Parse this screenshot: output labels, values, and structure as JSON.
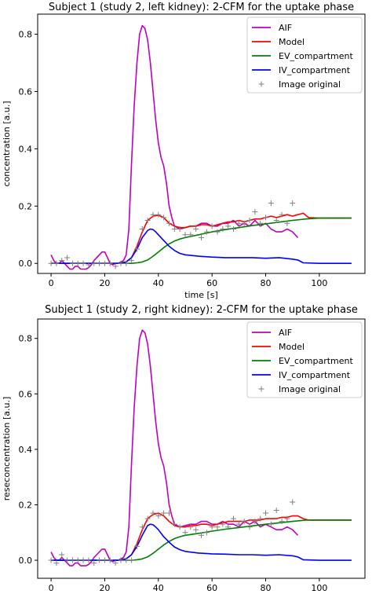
{
  "chart_data": [
    {
      "type": "line",
      "title": "Subject 1 (study 2, left kidney): 2-CFM for the uptake phase",
      "xlabel": "time [s]",
      "ylabel": "concentration [a.u.]",
      "xlim": [
        -5,
        117
      ],
      "ylim": [
        -0.035,
        0.87
      ],
      "xticks": [
        0,
        20,
        40,
        60,
        80,
        100
      ],
      "yticks": [
        0.0,
        0.2,
        0.4,
        0.6,
        0.8
      ],
      "xtick_labels": [
        "0",
        "20",
        "40",
        "60",
        "80",
        "100"
      ],
      "ytick_labels": [
        "0.0",
        "0.2",
        "0.4",
        "0.6",
        "0.8"
      ],
      "grid": false,
      "legend_position": "top-right",
      "series": [
        {
          "name": "AIF",
          "kind": "line",
          "color": "#bf00bf",
          "x": [
            0,
            1,
            2,
            3,
            4,
            5,
            6,
            7,
            8,
            9,
            10,
            11,
            12,
            13,
            14,
            15,
            16,
            17,
            18,
            19,
            20,
            21,
            22,
            23,
            24,
            25,
            26,
            27,
            28,
            29,
            30,
            31,
            32,
            33,
            34,
            35,
            36,
            37,
            38,
            39,
            40,
            41,
            42,
            43,
            44,
            45,
            46,
            47,
            48,
            50,
            52,
            54,
            56,
            58,
            60,
            62,
            64,
            66,
            68,
            70,
            72,
            74,
            76,
            78,
            80,
            82,
            84,
            86,
            88,
            90,
            92
          ],
          "y": [
            0.03,
            0.01,
            0.0,
            0.0,
            0.01,
            0.0,
            -0.01,
            -0.02,
            -0.02,
            -0.01,
            -0.01,
            -0.02,
            -0.02,
            -0.02,
            -0.015,
            -0.005,
            0.01,
            0.02,
            0.03,
            0.04,
            0.04,
            0.02,
            0.0,
            -0.005,
            0.0,
            0.0,
            0.005,
            0.01,
            0.03,
            0.12,
            0.35,
            0.55,
            0.7,
            0.8,
            0.83,
            0.82,
            0.78,
            0.7,
            0.6,
            0.5,
            0.42,
            0.37,
            0.34,
            0.28,
            0.2,
            0.16,
            0.13,
            0.125,
            0.12,
            0.125,
            0.13,
            0.13,
            0.14,
            0.14,
            0.13,
            0.13,
            0.14,
            0.14,
            0.15,
            0.13,
            0.14,
            0.13,
            0.15,
            0.13,
            0.14,
            0.12,
            0.11,
            0.11,
            0.12,
            0.11,
            0.09
          ]
        },
        {
          "name": "Model",
          "kind": "line",
          "color": "#ff0000",
          "x": [
            0,
            5,
            10,
            15,
            20,
            25,
            28,
            30,
            32,
            34,
            36,
            38,
            40,
            42,
            44,
            46,
            48,
            50,
            52,
            54,
            56,
            58,
            60,
            62,
            64,
            66,
            68,
            70,
            72,
            74,
            76,
            78,
            80,
            82,
            84,
            86,
            88,
            90,
            92,
            94,
            96,
            100,
            105,
            112
          ],
          "y": [
            0.0,
            0.0,
            0.0,
            0.0,
            0.0,
            0.0,
            0.005,
            0.02,
            0.06,
            0.11,
            0.15,
            0.165,
            0.168,
            0.16,
            0.14,
            0.13,
            0.125,
            0.125,
            0.13,
            0.13,
            0.135,
            0.135,
            0.13,
            0.135,
            0.14,
            0.145,
            0.145,
            0.15,
            0.145,
            0.15,
            0.155,
            0.155,
            0.16,
            0.165,
            0.16,
            0.165,
            0.17,
            0.165,
            0.17,
            0.175,
            0.16,
            0.158,
            0.158,
            0.158
          ]
        },
        {
          "name": "EV_compartment",
          "kind": "line",
          "color": "#008000",
          "x": [
            0,
            5,
            10,
            15,
            20,
            25,
            28,
            30,
            32,
            34,
            36,
            38,
            40,
            42,
            44,
            46,
            48,
            50,
            55,
            60,
            65,
            70,
            75,
            80,
            85,
            90,
            95,
            100,
            105,
            112
          ],
          "y": [
            0.0,
            0.0,
            0.0,
            0.0,
            0.0,
            0.0,
            0.0,
            0.0,
            0.002,
            0.005,
            0.012,
            0.025,
            0.04,
            0.055,
            0.068,
            0.078,
            0.085,
            0.09,
            0.1,
            0.11,
            0.118,
            0.125,
            0.132,
            0.138,
            0.144,
            0.15,
            0.155,
            0.158,
            0.158,
            0.158
          ]
        },
        {
          "name": "IV_compartment",
          "kind": "line",
          "color": "#0000ff",
          "x": [
            0,
            5,
            10,
            15,
            20,
            25,
            28,
            30,
            32,
            34,
            36,
            37,
            38,
            39,
            40,
            42,
            44,
            46,
            48,
            50,
            55,
            60,
            65,
            70,
            75,
            80,
            85,
            90,
            92,
            94,
            100,
            105,
            112
          ],
          "y": [
            0.0,
            0.0,
            0.0,
            0.0,
            0.0,
            0.0,
            0.005,
            0.02,
            0.05,
            0.09,
            0.115,
            0.12,
            0.118,
            0.11,
            0.1,
            0.08,
            0.06,
            0.045,
            0.035,
            0.03,
            0.025,
            0.022,
            0.02,
            0.02,
            0.02,
            0.018,
            0.02,
            0.015,
            0.012,
            0.002,
            0.0,
            0.0,
            0.0
          ]
        },
        {
          "name": "Image original",
          "kind": "scatter",
          "color": "#808080",
          "x": [
            0,
            2,
            4,
            6,
            8,
            10,
            12,
            14,
            16,
            18,
            20,
            22,
            24,
            26,
            28,
            30,
            32,
            34,
            36,
            38,
            40,
            42,
            44,
            46,
            48,
            50,
            52,
            54,
            56,
            58,
            60,
            62,
            64,
            66,
            68,
            70,
            72,
            74,
            76,
            78,
            80,
            82,
            84,
            86,
            88,
            90
          ],
          "y": [
            0.0,
            0.0,
            0.01,
            0.02,
            0.0,
            0.0,
            0.0,
            -0.005,
            0.0,
            0.0,
            0.0,
            0.0,
            -0.01,
            0.0,
            0.0,
            0.01,
            0.05,
            0.12,
            0.15,
            0.17,
            0.17,
            0.16,
            0.14,
            0.12,
            0.12,
            0.1,
            0.1,
            0.12,
            0.09,
            0.11,
            0.13,
            0.11,
            0.12,
            0.13,
            0.12,
            0.14,
            0.14,
            0.15,
            0.18,
            0.14,
            0.16,
            0.21,
            0.15,
            0.17,
            0.14,
            0.21
          ]
        }
      ]
    },
    {
      "type": "line",
      "title": "Subject 1 (study 2, right kidney): 2-CFM for the uptake phase",
      "xlabel": "time [s]",
      "ylabel": "reseconcentration [a.u.]",
      "xlim": [
        -5,
        117
      ],
      "ylim": [
        -0.065,
        0.87
      ],
      "xticks": [
        0,
        20,
        40,
        60,
        80,
        100
      ],
      "yticks": [
        0.0,
        0.2,
        0.4,
        0.6,
        0.8
      ],
      "xtick_labels": [
        "0",
        "20",
        "40",
        "60",
        "80",
        "100"
      ],
      "ytick_labels": [
        "0.0",
        "0.2",
        "0.4",
        "0.6",
        "0.8"
      ],
      "grid": false,
      "legend_position": "top-right",
      "series": [
        {
          "name": "AIF",
          "kind": "line",
          "color": "#bf00bf",
          "x": [
            0,
            1,
            2,
            3,
            4,
            5,
            6,
            7,
            8,
            9,
            10,
            11,
            12,
            13,
            14,
            15,
            16,
            17,
            18,
            19,
            20,
            21,
            22,
            23,
            24,
            25,
            26,
            27,
            28,
            29,
            30,
            31,
            32,
            33,
            34,
            35,
            36,
            37,
            38,
            39,
            40,
            41,
            42,
            43,
            44,
            45,
            46,
            47,
            48,
            50,
            52,
            54,
            56,
            58,
            60,
            62,
            64,
            66,
            68,
            70,
            72,
            74,
            76,
            78,
            80,
            82,
            84,
            86,
            88,
            90,
            92
          ],
          "y": [
            0.03,
            0.01,
            0.0,
            0.0,
            0.01,
            0.0,
            -0.01,
            -0.02,
            -0.02,
            -0.01,
            -0.01,
            -0.02,
            -0.02,
            -0.02,
            -0.015,
            -0.005,
            0.01,
            0.02,
            0.03,
            0.04,
            0.04,
            0.02,
            0.0,
            -0.005,
            0.0,
            0.0,
            0.005,
            0.01,
            0.03,
            0.12,
            0.35,
            0.55,
            0.7,
            0.8,
            0.83,
            0.82,
            0.78,
            0.7,
            0.6,
            0.5,
            0.42,
            0.37,
            0.34,
            0.28,
            0.2,
            0.16,
            0.13,
            0.125,
            0.12,
            0.125,
            0.13,
            0.13,
            0.14,
            0.14,
            0.13,
            0.13,
            0.14,
            0.13,
            0.13,
            0.12,
            0.14,
            0.13,
            0.14,
            0.12,
            0.13,
            0.12,
            0.11,
            0.11,
            0.12,
            0.11,
            0.09
          ]
        },
        {
          "name": "Model",
          "kind": "line",
          "color": "#ff0000",
          "x": [
            0,
            5,
            10,
            15,
            20,
            25,
            28,
            30,
            32,
            34,
            36,
            38,
            40,
            42,
            44,
            46,
            48,
            50,
            52,
            54,
            56,
            58,
            60,
            62,
            64,
            66,
            68,
            70,
            72,
            74,
            76,
            78,
            80,
            82,
            84,
            86,
            88,
            90,
            92,
            94,
            96,
            100,
            105,
            112
          ],
          "y": [
            0.0,
            0.0,
            0.0,
            0.0,
            0.0,
            0.0,
            0.005,
            0.02,
            0.06,
            0.11,
            0.15,
            0.165,
            0.17,
            0.16,
            0.14,
            0.125,
            0.12,
            0.12,
            0.125,
            0.125,
            0.13,
            0.13,
            0.125,
            0.13,
            0.135,
            0.14,
            0.14,
            0.14,
            0.14,
            0.145,
            0.145,
            0.145,
            0.15,
            0.15,
            0.15,
            0.155,
            0.155,
            0.16,
            0.16,
            0.15,
            0.145,
            0.145,
            0.145,
            0.145
          ]
        },
        {
          "name": "EV_compartment",
          "kind": "line",
          "color": "#008000",
          "x": [
            0,
            5,
            10,
            15,
            20,
            25,
            28,
            30,
            32,
            34,
            36,
            38,
            40,
            42,
            44,
            46,
            48,
            50,
            55,
            60,
            65,
            70,
            75,
            80,
            85,
            90,
            95,
            100,
            105,
            112
          ],
          "y": [
            0.0,
            0.0,
            0.0,
            0.0,
            0.0,
            0.0,
            0.0,
            0.0,
            0.002,
            0.005,
            0.012,
            0.025,
            0.04,
            0.055,
            0.068,
            0.078,
            0.085,
            0.09,
            0.097,
            0.105,
            0.112,
            0.118,
            0.124,
            0.13,
            0.135,
            0.14,
            0.145,
            0.145,
            0.145,
            0.145
          ]
        },
        {
          "name": "IV_compartment",
          "kind": "line",
          "color": "#0000ff",
          "x": [
            0,
            5,
            10,
            15,
            20,
            25,
            28,
            30,
            32,
            34,
            36,
            37,
            38,
            39,
            40,
            42,
            44,
            46,
            48,
            50,
            55,
            60,
            65,
            70,
            75,
            80,
            85,
            90,
            92,
            94,
            100,
            105,
            112
          ],
          "y": [
            0.0,
            0.0,
            0.0,
            0.0,
            0.0,
            0.0,
            0.005,
            0.02,
            0.05,
            0.09,
            0.125,
            0.13,
            0.128,
            0.12,
            0.11,
            0.085,
            0.065,
            0.048,
            0.038,
            0.032,
            0.026,
            0.023,
            0.022,
            0.02,
            0.02,
            0.018,
            0.02,
            0.016,
            0.012,
            0.002,
            0.0,
            0.0,
            0.0
          ]
        },
        {
          "name": "Image original",
          "kind": "scatter",
          "color": "#808080",
          "x": [
            0,
            2,
            4,
            6,
            8,
            10,
            12,
            14,
            16,
            18,
            20,
            22,
            24,
            26,
            28,
            30,
            32,
            34,
            36,
            38,
            40,
            42,
            44,
            46,
            48,
            50,
            52,
            54,
            56,
            58,
            60,
            62,
            64,
            66,
            68,
            70,
            72,
            74,
            76,
            78,
            80,
            82,
            84,
            86,
            88,
            90
          ],
          "y": [
            0.0,
            -0.01,
            0.02,
            0.0,
            0.0,
            0.0,
            0.0,
            0.0,
            -0.01,
            0.0,
            0.0,
            0.0,
            -0.01,
            0.0,
            0.0,
            0.0,
            0.05,
            0.12,
            0.15,
            0.17,
            0.16,
            0.17,
            0.17,
            0.13,
            0.12,
            0.1,
            0.12,
            0.11,
            0.09,
            0.1,
            0.12,
            0.12,
            0.13,
            0.12,
            0.15,
            0.13,
            0.14,
            0.12,
            0.14,
            0.15,
            0.17,
            0.13,
            0.18,
            0.14,
            0.15,
            0.21
          ]
        }
      ]
    }
  ]
}
